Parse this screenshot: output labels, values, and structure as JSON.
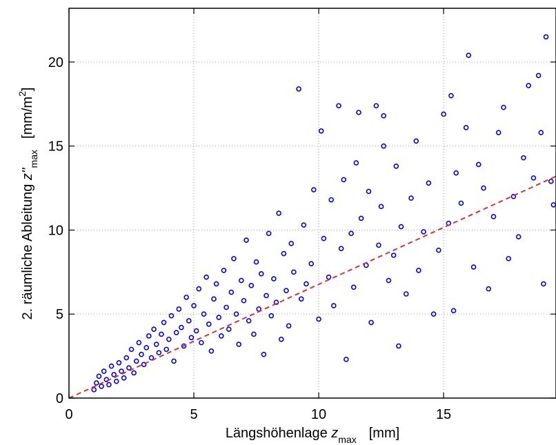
{
  "chart_data": {
    "type": "scatter",
    "xlabel": {
      "main": "Längshöhenlage ",
      "var": "z",
      "sub": "max",
      "unit": "[mm]"
    },
    "ylabel": {
      "main": "2. räumliche Ableitung ",
      "var": "z''",
      "sub": "max",
      "unit_pre": "[mm/m",
      "unit_sup": "2",
      "unit_post": "]"
    },
    "xlim": [
      0,
      19.5
    ],
    "ylim": [
      0,
      23.2
    ],
    "xticks": [
      0,
      5,
      10,
      15
    ],
    "yticks": [
      0,
      5,
      10,
      15,
      20
    ],
    "grid": true,
    "series": [
      {
        "marker": "circle",
        "color": "#0000ff",
        "points": [
          [
            1.0,
            0.5
          ],
          [
            1.1,
            0.9
          ],
          [
            1.2,
            1.3
          ],
          [
            1.3,
            0.7
          ],
          [
            1.4,
            1.6
          ],
          [
            1.5,
            1.1
          ],
          [
            1.6,
            0.8
          ],
          [
            1.7,
            1.9
          ],
          [
            1.8,
            1.4
          ],
          [
            1.9,
            1.0
          ],
          [
            2.0,
            2.1
          ],
          [
            2.1,
            1.6
          ],
          [
            2.2,
            1.2
          ],
          [
            2.3,
            2.4
          ],
          [
            2.4,
            1.8
          ],
          [
            2.5,
            2.9
          ],
          [
            2.6,
            1.5
          ],
          [
            2.7,
            2.2
          ],
          [
            2.8,
            3.3
          ],
          [
            2.9,
            2.6
          ],
          [
            3.0,
            2.0
          ],
          [
            3.1,
            3.0
          ],
          [
            3.2,
            3.7
          ],
          [
            3.3,
            2.4
          ],
          [
            3.4,
            4.1
          ],
          [
            3.5,
            3.2
          ],
          [
            3.6,
            2.7
          ],
          [
            3.7,
            3.8
          ],
          [
            3.8,
            4.5
          ],
          [
            3.9,
            2.9
          ],
          [
            4.0,
            3.5
          ],
          [
            4.1,
            4.9
          ],
          [
            4.2,
            2.2
          ],
          [
            4.3,
            3.9
          ],
          [
            4.4,
            5.3
          ],
          [
            4.5,
            4.2
          ],
          [
            4.6,
            3.1
          ],
          [
            4.7,
            6.0
          ],
          [
            4.8,
            4.6
          ],
          [
            4.9,
            3.6
          ],
          [
            5.0,
            5.5
          ],
          [
            5.1,
            4.0
          ],
          [
            5.2,
            6.5
          ],
          [
            5.3,
            3.3
          ],
          [
            5.4,
            5.0
          ],
          [
            5.5,
            7.2
          ],
          [
            5.6,
            4.4
          ],
          [
            5.7,
            2.8
          ],
          [
            5.8,
            5.9
          ],
          [
            5.9,
            6.8
          ],
          [
            6.0,
            4.8
          ],
          [
            6.1,
            3.7
          ],
          [
            6.2,
            7.6
          ],
          [
            6.3,
            5.4
          ],
          [
            6.4,
            4.1
          ],
          [
            6.5,
            6.3
          ],
          [
            6.6,
            8.3
          ],
          [
            6.7,
            5.0
          ],
          [
            6.8,
            3.2
          ],
          [
            6.9,
            7.0
          ],
          [
            7.0,
            5.8
          ],
          [
            7.1,
            9.4
          ],
          [
            7.2,
            4.6
          ],
          [
            7.3,
            6.7
          ],
          [
            7.4,
            3.8
          ],
          [
            7.5,
            8.1
          ],
          [
            7.6,
            5.3
          ],
          [
            7.7,
            7.4
          ],
          [
            7.8,
            2.6
          ],
          [
            7.9,
            6.1
          ],
          [
            8.0,
            9.8
          ],
          [
            8.1,
            4.9
          ],
          [
            8.2,
            7.1
          ],
          [
            8.3,
            5.7
          ],
          [
            8.4,
            11.0
          ],
          [
            8.5,
            3.5
          ],
          [
            8.6,
            8.6
          ],
          [
            8.7,
            6.4
          ],
          [
            8.8,
            4.3
          ],
          [
            8.9,
            9.2
          ],
          [
            9.0,
            7.5
          ],
          [
            9.2,
            18.4
          ],
          [
            9.3,
            5.9
          ],
          [
            9.4,
            10.3
          ],
          [
            9.5,
            6.8
          ],
          [
            9.7,
            8.0
          ],
          [
            9.8,
            12.4
          ],
          [
            10.0,
            4.7
          ],
          [
            10.1,
            15.9
          ],
          [
            10.2,
            9.5
          ],
          [
            10.4,
            7.2
          ],
          [
            10.5,
            11.8
          ],
          [
            10.6,
            5.5
          ],
          [
            10.8,
            17.4
          ],
          [
            10.9,
            8.9
          ],
          [
            11.0,
            13.0
          ],
          [
            11.1,
            2.3
          ],
          [
            11.3,
            9.8
          ],
          [
            11.4,
            6.6
          ],
          [
            11.5,
            14.0
          ],
          [
            11.6,
            17.0
          ],
          [
            11.7,
            10.7
          ],
          [
            11.9,
            7.9
          ],
          [
            12.0,
            12.3
          ],
          [
            12.1,
            4.5
          ],
          [
            12.3,
            17.4
          ],
          [
            12.4,
            9.1
          ],
          [
            12.5,
            11.4
          ],
          [
            12.6,
            16.8
          ],
          [
            12.8,
            7.0
          ],
          [
            13.0,
            8.5
          ],
          [
            13.1,
            13.8
          ],
          [
            13.2,
            3.1
          ],
          [
            13.3,
            10.2
          ],
          [
            13.5,
            6.2
          ],
          [
            13.7,
            11.9
          ],
          [
            13.9,
            15.3
          ],
          [
            14.0,
            7.6
          ],
          [
            14.2,
            9.9
          ],
          [
            14.4,
            12.8
          ],
          [
            14.6,
            5.0
          ],
          [
            14.8,
            8.8
          ],
          [
            15.0,
            16.9
          ],
          [
            15.2,
            10.4
          ],
          [
            15.4,
            5.2
          ],
          [
            15.5,
            13.4
          ],
          [
            15.7,
            11.6
          ],
          [
            15.9,
            16.1
          ],
          [
            16.0,
            20.4
          ],
          [
            16.2,
            7.8
          ],
          [
            16.4,
            13.9
          ],
          [
            16.6,
            12.5
          ],
          [
            16.8,
            6.5
          ],
          [
            17.0,
            10.8
          ],
          [
            17.2,
            15.8
          ],
          [
            17.4,
            17.3
          ],
          [
            17.6,
            8.3
          ],
          [
            17.8,
            12.0
          ],
          [
            18.0,
            9.6
          ],
          [
            18.2,
            14.3
          ],
          [
            18.4,
            18.6
          ],
          [
            18.6,
            13.1
          ],
          [
            18.8,
            19.2
          ],
          [
            19.0,
            6.8
          ],
          [
            19.1,
            21.5
          ],
          [
            19.3,
            12.9
          ],
          [
            19.4,
            11.5
          ],
          [
            15.3,
            18.0
          ],
          [
            18.9,
            15.8
          ],
          [
            12.6,
            15.0
          ]
        ]
      }
    ],
    "trendline": {
      "style": "dashed",
      "color": "#e03030",
      "x": [
        0,
        19.5
      ],
      "y": [
        0,
        13.2
      ]
    }
  }
}
